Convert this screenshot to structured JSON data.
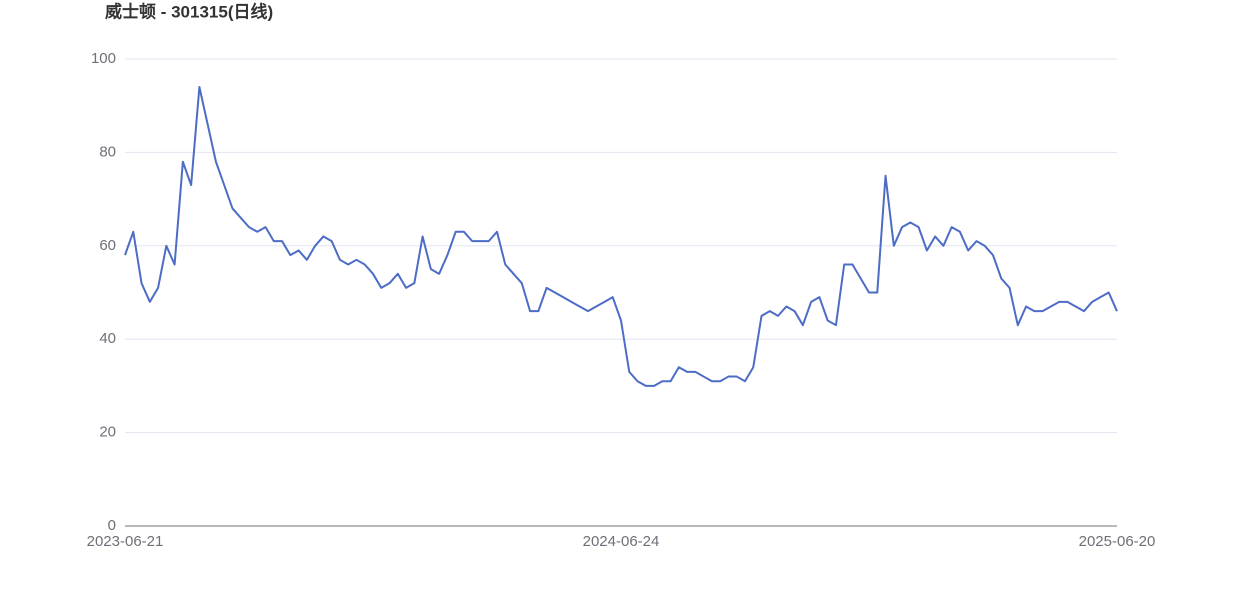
{
  "chart_data": {
    "type": "line",
    "title": "威士顿 - 301315(日线)",
    "categories": [
      "2023-06-21",
      null,
      null,
      null,
      null,
      null,
      null,
      null,
      null,
      null,
      null,
      null,
      null,
      null,
      null,
      null,
      null,
      null,
      null,
      null,
      null,
      null,
      null,
      null,
      null,
      null,
      null,
      null,
      null,
      null,
      null,
      null,
      null,
      null,
      null,
      null,
      null,
      null,
      null,
      null,
      null,
      null,
      null,
      null,
      null,
      null,
      null,
      null,
      null,
      null,
      null,
      null,
      null,
      null,
      null,
      null,
      null,
      null,
      null,
      null,
      "2024-06-24",
      null,
      null,
      null,
      null,
      null,
      null,
      null,
      null,
      null,
      null,
      null,
      null,
      null,
      null,
      null,
      null,
      null,
      null,
      null,
      null,
      null,
      null,
      null,
      null,
      null,
      null,
      null,
      null,
      null,
      null,
      null,
      null,
      null,
      null,
      null,
      null,
      null,
      null,
      null,
      null,
      null,
      null,
      null,
      null,
      null,
      null,
      null,
      null,
      null,
      null,
      null,
      null,
      null,
      null,
      null,
      null,
      null,
      null,
      null,
      "2025-06-20"
    ],
    "values": [
      58,
      63,
      52,
      48,
      51,
      60,
      56,
      78,
      73,
      94,
      86,
      78,
      73,
      68,
      66,
      64,
      63,
      64,
      61,
      61,
      58,
      59,
      57,
      60,
      62,
      61,
      57,
      56,
      57,
      56,
      54,
      51,
      52,
      54,
      51,
      52,
      62,
      55,
      54,
      58,
      63,
      63,
      61,
      61,
      61,
      63,
      56,
      54,
      52,
      46,
      46,
      51,
      50,
      49,
      48,
      47,
      46,
      47,
      48,
      49,
      44,
      33,
      31,
      30,
      30,
      31,
      31,
      34,
      33,
      33,
      32,
      31,
      31,
      32,
      32,
      31,
      34,
      45,
      46,
      45,
      47,
      46,
      43,
      48,
      49,
      44,
      43,
      56,
      56,
      53,
      50,
      50,
      75,
      60,
      64,
      65,
      64,
      59,
      62,
      60,
      64,
      63,
      59,
      61,
      60,
      58,
      53,
      51,
      43,
      47,
      46,
      46,
      47,
      48,
      48,
      47,
      46,
      48,
      49,
      50,
      46
    ],
    "color": "#4d6cc6",
    "ylim": [
      0,
      100
    ],
    "yticks": [
      0,
      20,
      40,
      60,
      80,
      100
    ],
    "grid": true
  }
}
